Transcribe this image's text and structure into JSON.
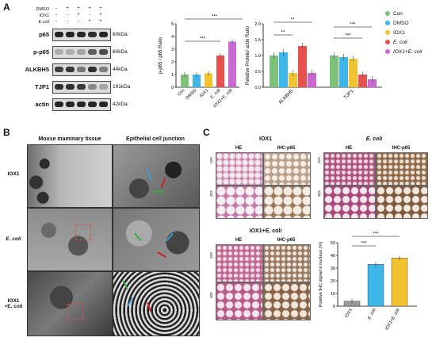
{
  "panels": {
    "a": "A",
    "b": "B",
    "c": "C"
  },
  "western_blot": {
    "conditions": [
      {
        "label": "DMSO",
        "marks": [
          "-",
          "+",
          "+",
          "+",
          "+"
        ]
      },
      {
        "label": "IOX1",
        "marks": [
          "-",
          "-",
          "+",
          "-",
          "+"
        ]
      },
      {
        "label": "E.coli",
        "marks": [
          "-",
          "-",
          "-",
          "+",
          "+"
        ]
      }
    ],
    "rows": [
      {
        "label": "p65",
        "kda": "60kDa"
      },
      {
        "label": "p-p65",
        "kda": "60kDa"
      },
      {
        "label": "ALKBH5",
        "kda": "44kDa"
      },
      {
        "label": "TJP1",
        "kda": "191kDa"
      },
      {
        "label": "actin",
        "kda": "42kDa"
      }
    ]
  },
  "sig": {
    "s3": "***",
    "s2": "**"
  },
  "chart_data": [
    {
      "type": "bar",
      "ylabel": "p-p65 / p65 Ratio",
      "categories": [
        "Con",
        "DMSO",
        "IOX1",
        "E. coli",
        "IOX1+E. coli"
      ],
      "values": [
        1.0,
        1.0,
        1.1,
        2.5,
        3.6
      ],
      "ylim": [
        0,
        5
      ],
      "yticks": [
        "0",
        "1",
        "2",
        "3",
        "4",
        "5"
      ],
      "colors": [
        "#7ec27a",
        "#3fb6e8",
        "#f2c230",
        "#e8524e",
        "#c86ad0"
      ]
    },
    {
      "type": "bar",
      "ylabel": "Relative Protein/ actin Ratio",
      "categories": [
        "ALKBH5",
        "TJP1"
      ],
      "series": [
        {
          "name": "Con",
          "values": [
            1.0,
            1.0
          ],
          "color": "#7ec27a"
        },
        {
          "name": "DMSO",
          "values": [
            1.1,
            0.95
          ],
          "color": "#3fb6e8"
        },
        {
          "name": "IOX1",
          "values": [
            0.45,
            0.9
          ],
          "color": "#f2c230"
        },
        {
          "name": "E. coli",
          "values": [
            1.3,
            0.4
          ],
          "color": "#e8524e"
        },
        {
          "name": "IOX1+E. coli",
          "values": [
            0.45,
            0.25
          ],
          "color": "#c86ad0"
        }
      ],
      "ylim": [
        0,
        2.0
      ],
      "yticks": [
        "0.0",
        "0.5",
        "1.0",
        "1.5",
        "2.0"
      ]
    },
    {
      "type": "bar",
      "ylabel": "Positive IHC signal in nucleus (%)",
      "categories": [
        "IOX1",
        "E. coli",
        "IOX1+E. coli"
      ],
      "values": [
        4,
        33,
        38
      ],
      "ylim": [
        0,
        50
      ],
      "yticks": [
        "0",
        "10",
        "20",
        "30",
        "40",
        "50"
      ],
      "colors": [
        "#9a9a9a",
        "#3fb6e8",
        "#f2c230"
      ]
    }
  ],
  "legend": [
    "Con",
    "DMSO",
    "IOX1",
    "E. coli",
    "IOX1+E. coli"
  ],
  "em": {
    "col1": "Mouse mammary tissue",
    "col2": "Epithelial cell junction",
    "rows": [
      "IOX1",
      "E. coli",
      "IOX1\n+E. coli"
    ]
  },
  "hist": {
    "g1": "IOX1",
    "g2": "E. coli",
    "g3": "IOX1+E. coli",
    "he": "HE",
    "ihc": "IHC-p65",
    "m10": "10X",
    "m40": "40X"
  }
}
